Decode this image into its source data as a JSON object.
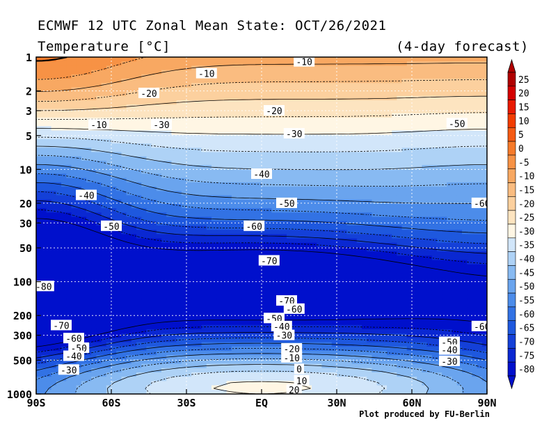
{
  "header": {
    "title": "ECMWF 12 UTC Zonal Mean State: OCT/26/2021",
    "subtitle": "Temperature [°C]",
    "forecast": "(4-day forecast)",
    "credit": "Plot produced by FU-Berlin"
  },
  "chart_data": {
    "type": "heatmap",
    "title": "ECMWF 12 UTC Zonal Mean State: OCT/26/2021",
    "subtitle": "Temperature [°C]",
    "x_axis": {
      "ticks": [
        -90,
        -60,
        -30,
        0,
        30,
        60,
        90
      ],
      "tick_labels": [
        "90S",
        "60S",
        "30S",
        "EQ",
        "30N",
        "60N",
        "90N"
      ],
      "range": [
        -90,
        90
      ]
    },
    "y_axis": {
      "scale": "log",
      "reversed": true,
      "range": [
        1,
        1000
      ],
      "ticks": [
        1,
        2,
        3,
        5,
        10,
        20,
        30,
        50,
        100,
        200,
        300,
        500,
        1000
      ],
      "tick_labels": [
        "1",
        "2",
        "3",
        "5",
        "10",
        "20",
        "30",
        "50",
        "100",
        "200",
        "300",
        "500",
        "1000"
      ]
    },
    "colorbar": {
      "levels": [
        25,
        20,
        15,
        10,
        5,
        0,
        -5,
        -10,
        -15,
        -20,
        -25,
        -30,
        -35,
        -40,
        -45,
        -50,
        -55,
        -60,
        -65,
        -70,
        -75,
        -80
      ],
      "labels": [
        "25",
        "20",
        "15",
        "10",
        "5",
        "0",
        "-5",
        "-10",
        "-15",
        "-20",
        "-25",
        "-30",
        "-35",
        "-40",
        "-45",
        "-50",
        "-55",
        "-60",
        "-65",
        "-70",
        "-75",
        "-80"
      ],
      "colors": [
        "#b00000",
        "#d40000",
        "#e81a00",
        "#f23c00",
        "#f55a14",
        "#f67a2a",
        "#f79245",
        "#f8a862",
        "#fabc80",
        "#fcd09e",
        "#fde4c0",
        "#fff6e4",
        "#d2e6fa",
        "#aed2f6",
        "#88baf2",
        "#6aa4ee",
        "#4c8cea",
        "#3272e4",
        "#1e58de",
        "#1440d8",
        "#0a28d2",
        "#0010cc"
      ]
    },
    "grid": true,
    "contour_labels": [
      {
        "text": "-10",
        "lat": -65,
        "p": 4
      },
      {
        "text": "-10",
        "lat": -22,
        "p": 1.4
      },
      {
        "text": "-10",
        "lat": 17,
        "p": 1.1
      },
      {
        "text": "-20",
        "lat": -45,
        "p": 2.1
      },
      {
        "text": "-20",
        "lat": 5,
        "p": 3
      },
      {
        "text": "-30",
        "lat": -40,
        "p": 4
      },
      {
        "text": "-30",
        "lat": 13,
        "p": 4.8
      },
      {
        "text": "-50",
        "lat": 78,
        "p": 3.9
      },
      {
        "text": "-40",
        "lat": 0,
        "p": 11
      },
      {
        "text": "-40",
        "lat": -70,
        "p": 17
      },
      {
        "text": "-50",
        "lat": 10,
        "p": 20
      },
      {
        "text": "-50",
        "lat": -60,
        "p": 32
      },
      {
        "text": "-60",
        "lat": -3,
        "p": 32
      },
      {
        "text": "-60",
        "lat": 88,
        "p": 20
      },
      {
        "text": "-70",
        "lat": 3,
        "p": 65
      },
      {
        "text": "-80",
        "lat": -87,
        "p": 110
      },
      {
        "text": "-70",
        "lat": 10,
        "p": 148
      },
      {
        "text": "-60",
        "lat": 13,
        "p": 175
      },
      {
        "text": "-50",
        "lat": 5,
        "p": 212
      },
      {
        "text": "-40",
        "lat": 8,
        "p": 250
      },
      {
        "text": "-30",
        "lat": 9,
        "p": 300
      },
      {
        "text": "-20",
        "lat": 12,
        "p": 395
      },
      {
        "text": "-10",
        "lat": 12,
        "p": 475
      },
      {
        "text": "0",
        "lat": 15,
        "p": 600
      },
      {
        "text": "10",
        "lat": 16,
        "p": 760
      },
      {
        "text": "20",
        "lat": 13,
        "p": 920
      },
      {
        "text": "-70",
        "lat": -80,
        "p": 245
      },
      {
        "text": "-60",
        "lat": -75,
        "p": 320
      },
      {
        "text": "-50",
        "lat": -73,
        "p": 390
      },
      {
        "text": "-40",
        "lat": -75,
        "p": 460
      },
      {
        "text": "-30",
        "lat": -77,
        "p": 610
      },
      {
        "text": "-60",
        "lat": 88,
        "p": 250
      },
      {
        "text": "-50",
        "lat": 75,
        "p": 345
      },
      {
        "text": "-40",
        "lat": 75,
        "p": 405
      },
      {
        "text": "-30",
        "lat": 75,
        "p": 510
      }
    ]
  }
}
